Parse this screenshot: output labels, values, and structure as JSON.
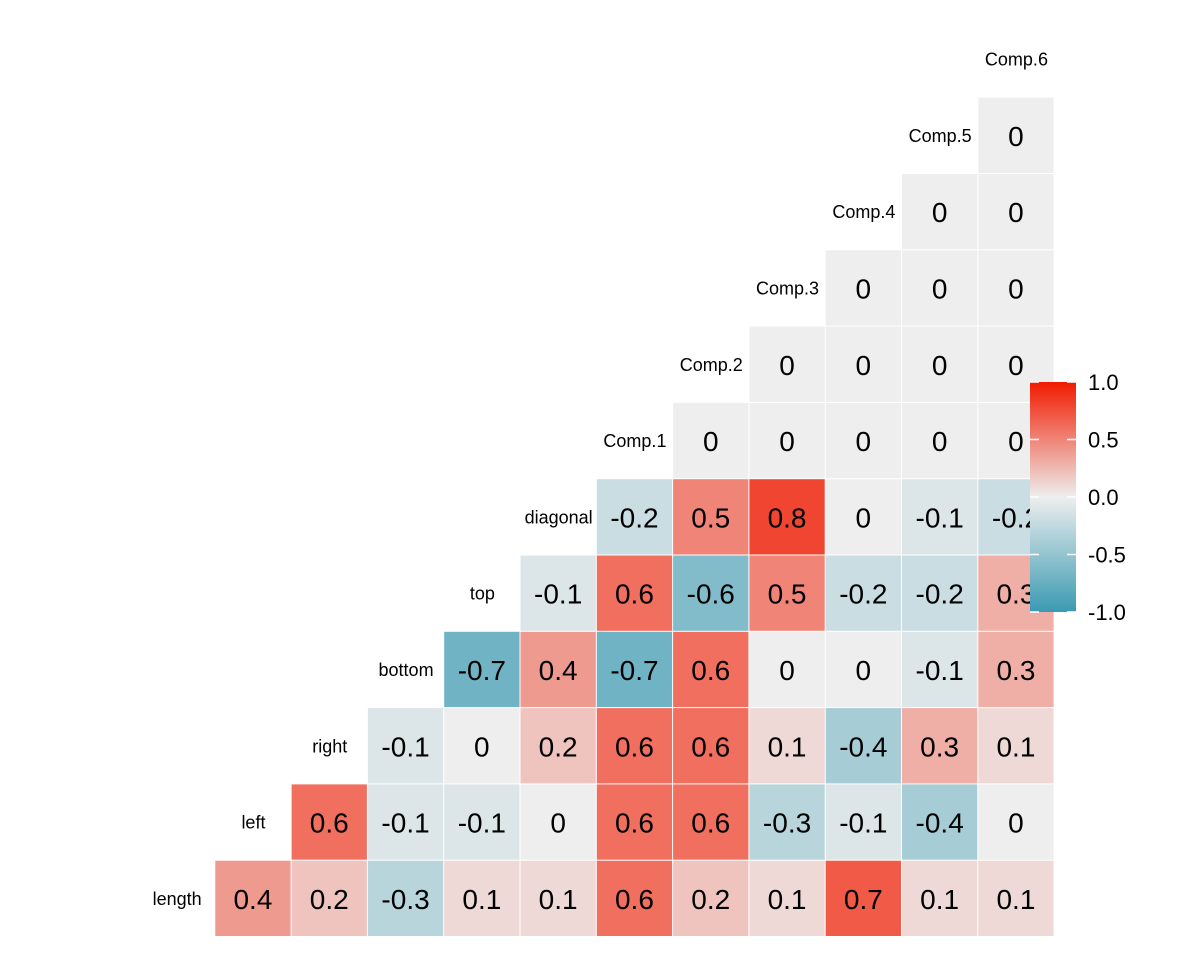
{
  "chart_data": {
    "type": "heatmap",
    "title": "",
    "xlabel": "",
    "ylabel": "",
    "variables": [
      "length",
      "left",
      "right",
      "bottom",
      "top",
      "diagonal",
      "Comp.1",
      "Comp.2",
      "Comp.3",
      "Comp.4",
      "Comp.5",
      "Comp.6"
    ],
    "rows": [
      {
        "label": "length",
        "values": [
          0.4,
          0.2,
          -0.3,
          0.1,
          0.1,
          0.6,
          0.2,
          0.1,
          0.7,
          0.1,
          0.1
        ]
      },
      {
        "label": "left",
        "values": [
          0.6,
          -0.1,
          -0.1,
          0,
          0.6,
          0.6,
          -0.3,
          -0.1,
          -0.4,
          0
        ]
      },
      {
        "label": "right",
        "values": [
          -0.1,
          0,
          0.2,
          0.6,
          0.6,
          0.1,
          -0.4,
          0.3,
          0.1
        ]
      },
      {
        "label": "bottom",
        "values": [
          -0.7,
          0.4,
          -0.7,
          0.6,
          0,
          0,
          -0.1,
          0.3
        ]
      },
      {
        "label": "top",
        "values": [
          -0.1,
          0.6,
          -0.6,
          0.5,
          -0.2,
          -0.2,
          0.3
        ]
      },
      {
        "label": "diagonal",
        "values": [
          -0.2,
          0.5,
          0.8,
          0,
          -0.1,
          -0.2
        ]
      },
      {
        "label": "Comp.1",
        "values": [
          0,
          0,
          0,
          0,
          0
        ]
      },
      {
        "label": "Comp.2",
        "values": [
          0,
          0,
          0,
          0
        ]
      },
      {
        "label": "Comp.3",
        "values": [
          0,
          0,
          0
        ]
      },
      {
        "label": "Comp.4",
        "values": [
          0,
          0
        ]
      },
      {
        "label": "Comp.5",
        "values": [
          0
        ]
      },
      {
        "label": "Comp.6",
        "values": []
      }
    ],
    "color_scale": {
      "low": "#3A9AB2",
      "mid": "#EEEEEE",
      "high": "#F11B00",
      "limits": [
        -1,
        1
      ]
    },
    "legend": {
      "position": "right",
      "ticks": [
        "1.0",
        "0.5",
        "0.0",
        "-0.5",
        "-1.0"
      ],
      "tick_values": [
        1,
        0.5,
        0,
        -0.5,
        -1
      ]
    }
  }
}
